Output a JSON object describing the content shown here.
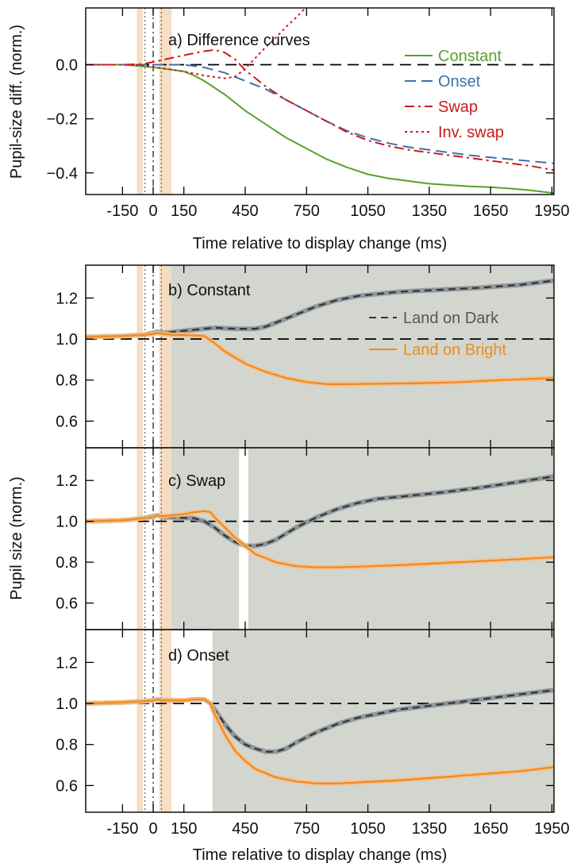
{
  "chart_data": [
    {
      "type": "line",
      "panel_label": "a) Difference curves",
      "xlabel": "Time relative to display change (ms)",
      "ylabel": "Pupil-size diff. (norm.)",
      "xlim": [
        -330,
        1960
      ],
      "ylim": [
        -0.48,
        0.21
      ],
      "xticks": [
        -150,
        0,
        150,
        450,
        750,
        1050,
        1350,
        1650,
        1950
      ],
      "yticks": [
        0.0,
        -0.2,
        -0.4
      ],
      "ytick_labels": [
        "0.0",
        "−0.2",
        "−0.4"
      ],
      "legend": "top-right",
      "reference_line_y": 0,
      "series": [
        {
          "name": "Constant",
          "color": "#5aa02c",
          "dash": "solid",
          "x": [
            -330,
            -150,
            -60,
            0,
            60,
            150,
            200,
            250,
            350,
            450,
            550,
            650,
            750,
            850,
            950,
            1050,
            1150,
            1250,
            1350,
            1450,
            1550,
            1650,
            1750,
            1850,
            1960
          ],
          "y": [
            0.0,
            0.0,
            -0.005,
            -0.01,
            -0.015,
            -0.025,
            -0.04,
            -0.06,
            -0.11,
            -0.17,
            -0.22,
            -0.27,
            -0.31,
            -0.35,
            -0.38,
            -0.405,
            -0.42,
            -0.43,
            -0.44,
            -0.445,
            -0.45,
            -0.453,
            -0.458,
            -0.465,
            -0.475
          ]
        },
        {
          "name": "Onset",
          "color": "#3f6fb0",
          "dash": "long",
          "x": [
            -330,
            -150,
            0,
            150,
            250,
            350,
            450,
            550,
            650,
            750,
            850,
            950,
            1050,
            1150,
            1250,
            1350,
            1450,
            1550,
            1650,
            1750,
            1850,
            1960
          ],
          "y": [
            0.0,
            0.0,
            0.0,
            0.0,
            -0.01,
            -0.03,
            -0.06,
            -0.09,
            -0.13,
            -0.17,
            -0.21,
            -0.245,
            -0.27,
            -0.29,
            -0.305,
            -0.315,
            -0.325,
            -0.335,
            -0.343,
            -0.35,
            -0.357,
            -0.365
          ]
        },
        {
          "name": "Swap",
          "color": "#cc1a1a",
          "dash": "dashdot",
          "x": [
            -330,
            -150,
            -60,
            0,
            60,
            150,
            250,
            300,
            350,
            400,
            450,
            550,
            650,
            750,
            850,
            950,
            1050,
            1150,
            1250,
            1350,
            1450,
            1550,
            1650,
            1750,
            1850,
            1960
          ],
          "y": [
            0.0,
            0.0,
            0.002,
            0.01,
            0.02,
            0.035,
            0.05,
            0.055,
            0.045,
            0.02,
            -0.02,
            -0.08,
            -0.13,
            -0.17,
            -0.21,
            -0.25,
            -0.28,
            -0.3,
            -0.315,
            -0.325,
            -0.335,
            -0.345,
            -0.355,
            -0.365,
            -0.375,
            -0.39
          ]
        },
        {
          "name": "Inv. swap",
          "color": "#cc1a1a",
          "dash": "dotted",
          "x": [
            -330,
            -150,
            -60,
            0,
            60,
            150,
            250,
            350,
            400,
            450,
            500,
            550,
            600,
            650,
            700,
            750
          ],
          "y": [
            0.0,
            0.0,
            -0.002,
            -0.008,
            -0.015,
            -0.025,
            -0.04,
            -0.05,
            -0.045,
            -0.015,
            0.025,
            0.065,
            0.1,
            0.14,
            0.175,
            0.215
          ]
        }
      ]
    },
    {
      "type": "line",
      "panel_label": "b) Constant",
      "xlim": [
        -330,
        1960
      ],
      "ylim": [
        0.47,
        1.36
      ],
      "yticks": [
        0.6,
        0.8,
        1.0,
        1.2
      ],
      "ytick_labels": [
        "0.6",
        "0.8",
        "1.0",
        "1.2"
      ],
      "shaded_x_ranges": [
        [
          60,
          1960
        ]
      ],
      "legend": "top-right",
      "reference_line_y": 1.0,
      "series": [
        {
          "name": "Land on Dark",
          "color": "#333333",
          "dash": "dashed",
          "x": [
            -330,
            -150,
            -50,
            0,
            20,
            50,
            100,
            200,
            300,
            400,
            500,
            550,
            600,
            700,
            800,
            900,
            1000,
            1100,
            1200,
            1400,
            1600,
            1800,
            1960
          ],
          "y": [
            1.01,
            1.015,
            1.02,
            1.03,
            1.035,
            1.03,
            1.035,
            1.045,
            1.055,
            1.05,
            1.05,
            1.06,
            1.08,
            1.12,
            1.16,
            1.19,
            1.21,
            1.22,
            1.23,
            1.24,
            1.25,
            1.265,
            1.285
          ]
        },
        {
          "name": "Land on Bright",
          "color": "#f08a1d",
          "dash": "solid",
          "x": [
            -330,
            -150,
            -50,
            0,
            20,
            50,
            100,
            150,
            250,
            300,
            350,
            450,
            550,
            650,
            750,
            850,
            950,
            1100,
            1300,
            1500,
            1700,
            1960
          ],
          "y": [
            1.01,
            1.015,
            1.02,
            1.025,
            1.03,
            1.025,
            1.02,
            1.02,
            1.015,
            0.98,
            0.94,
            0.88,
            0.84,
            0.81,
            0.79,
            0.78,
            0.78,
            0.782,
            0.785,
            0.79,
            0.8,
            0.81
          ]
        }
      ]
    },
    {
      "type": "line",
      "panel_label": "c) Swap",
      "xlim": [
        -330,
        1960
      ],
      "ylim": [
        0.47,
        1.36
      ],
      "yticks": [
        0.6,
        0.8,
        1.0,
        1.2
      ],
      "ytick_labels": [
        "0.6",
        "0.8",
        "1.0",
        "1.2"
      ],
      "shaded_x_ranges": [
        [
          60,
          420
        ],
        [
          465,
          1960
        ]
      ],
      "reference_line_y": 1.0,
      "series": [
        {
          "name": "Land on Dark",
          "color": "#333333",
          "dash": "dashed",
          "x": [
            -330,
            -150,
            -50,
            0,
            20,
            50,
            100,
            200,
            250,
            300,
            350,
            400,
            450,
            500,
            550,
            600,
            650,
            700,
            800,
            900,
            1000,
            1100,
            1200,
            1400,
            1600,
            1800,
            1960
          ],
          "y": [
            1.0,
            1.005,
            1.015,
            1.025,
            1.03,
            1.02,
            1.02,
            1.015,
            1.0,
            0.97,
            0.93,
            0.9,
            0.88,
            0.88,
            0.89,
            0.91,
            0.94,
            0.97,
            1.02,
            1.06,
            1.09,
            1.11,
            1.12,
            1.14,
            1.165,
            1.195,
            1.22
          ]
        },
        {
          "name": "Land on Bright",
          "color": "#f08a1d",
          "dash": "solid",
          "x": [
            -330,
            -150,
            -50,
            0,
            20,
            50,
            100,
            150,
            200,
            250,
            280,
            300,
            350,
            400,
            450,
            500,
            600,
            700,
            800,
            900,
            1000,
            1200,
            1400,
            1600,
            1800,
            1960
          ],
          "y": [
            1.0,
            1.005,
            1.015,
            1.02,
            1.03,
            1.025,
            1.03,
            1.035,
            1.045,
            1.05,
            1.045,
            1.02,
            0.97,
            0.92,
            0.88,
            0.84,
            0.8,
            0.78,
            0.775,
            0.775,
            0.778,
            0.785,
            0.795,
            0.805,
            0.815,
            0.825
          ]
        }
      ]
    },
    {
      "type": "line",
      "panel_label": "d) Onset",
      "xlabel": "Time relative to display change (ms)",
      "xlim": [
        -330,
        1960
      ],
      "ylim": [
        0.47,
        1.36
      ],
      "xticks": [
        -150,
        0,
        150,
        450,
        750,
        1050,
        1350,
        1650,
        1950
      ],
      "yticks": [
        0.6,
        0.8,
        1.0,
        1.2
      ],
      "ytick_labels": [
        "0.6",
        "0.8",
        "1.0",
        "1.2"
      ],
      "shaded_x_ranges": [
        [
          290,
          1960
        ]
      ],
      "reference_line_y": 1.0,
      "series": [
        {
          "name": "Land on Dark",
          "color": "#333333",
          "dash": "dashed",
          "x": [
            -330,
            -150,
            -50,
            0,
            20,
            50,
            100,
            150,
            200,
            250,
            280,
            300,
            350,
            400,
            450,
            500,
            550,
            600,
            650,
            700,
            800,
            900,
            1000,
            1100,
            1200,
            1400,
            1600,
            1800,
            1960
          ],
          "y": [
            1.0,
            1.005,
            1.01,
            1.015,
            1.02,
            1.015,
            1.015,
            1.015,
            1.02,
            1.02,
            1.0,
            0.97,
            0.9,
            0.84,
            0.8,
            0.78,
            0.765,
            0.765,
            0.78,
            0.81,
            0.86,
            0.9,
            0.93,
            0.95,
            0.97,
            0.995,
            1.02,
            1.045,
            1.065
          ]
        },
        {
          "name": "Land on Bright",
          "color": "#f08a1d",
          "dash": "solid",
          "x": [
            -330,
            -150,
            -50,
            0,
            20,
            50,
            100,
            150,
            200,
            250,
            280,
            300,
            350,
            400,
            450,
            500,
            600,
            700,
            800,
            900,
            1000,
            1200,
            1400,
            1600,
            1800,
            1960
          ],
          "y": [
            1.0,
            1.005,
            1.01,
            1.015,
            1.02,
            1.015,
            1.015,
            1.015,
            1.02,
            1.02,
            1.0,
            0.95,
            0.85,
            0.77,
            0.72,
            0.68,
            0.64,
            0.62,
            0.61,
            0.61,
            0.615,
            0.625,
            0.64,
            0.655,
            0.67,
            0.69
          ]
        }
      ]
    }
  ],
  "shared": {
    "ylabel_bcd": "Pupil size (norm.)",
    "vertical_marker_x": 0,
    "vertical_dotted_x": [
      -40,
      40
    ],
    "tan_bands_x": [
      [
        -80,
        -50
      ],
      [
        30,
        90
      ]
    ],
    "shade_color": "#d3d6cf",
    "tan_color": "#f3dcc2"
  }
}
